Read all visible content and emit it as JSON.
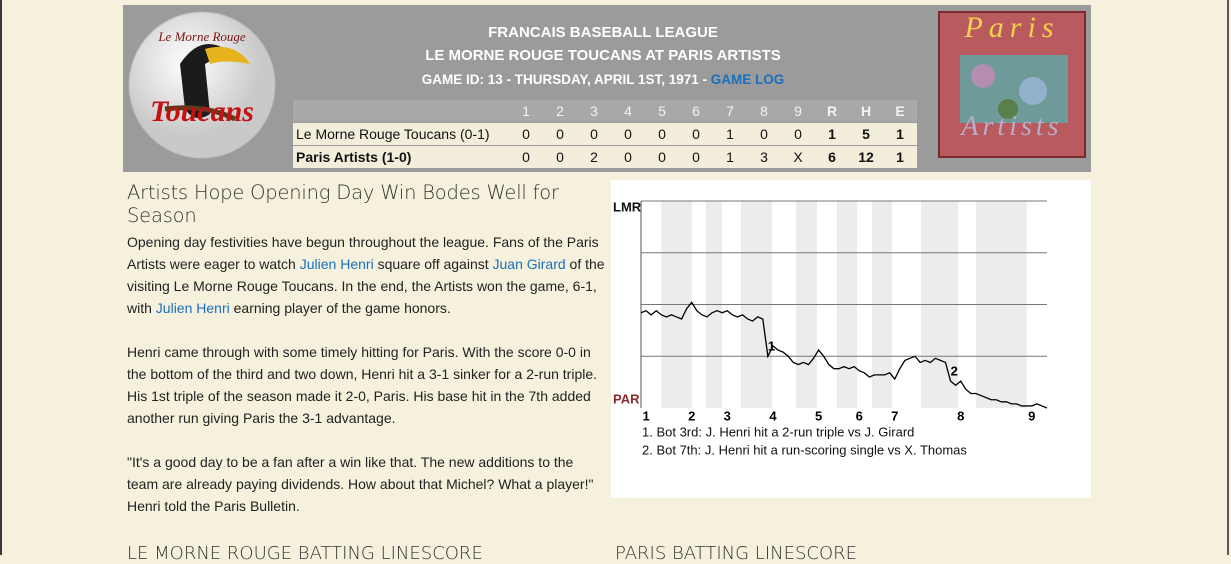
{
  "header": {
    "league": "FRANCAIS BASEBALL LEAGUE",
    "matchup": "LE MORNE ROUGE TOUCANS AT PARIS ARTISTS",
    "game_info": "GAME ID: 13 - THURSDAY, APRIL 1ST, 1971 -",
    "game_log_link": "GAME LOG",
    "away_logo": [
      "Le Morne Rouge",
      "Toucans"
    ],
    "home_logo": [
      "Paris",
      "Artists"
    ]
  },
  "linescore": {
    "columns": [
      "1",
      "2",
      "3",
      "4",
      "5",
      "6",
      "7",
      "8",
      "9",
      "R",
      "H",
      "E"
    ],
    "rows": [
      [
        "Le Morne Rouge Toucans (0-1)",
        0,
        0,
        0,
        0,
        0,
        0,
        1,
        0,
        0,
        1,
        5,
        1
      ],
      [
        "Paris Artists (1-0)",
        0,
        0,
        2,
        0,
        0,
        0,
        1,
        3,
        "X",
        6,
        12,
        1
      ]
    ]
  },
  "article": {
    "headline": "Artists Hope Opening Day Win Bodes Well for Season",
    "paragraphs": [
      [
        "Opening day festivities have begun throughout the league. Fans of the Paris Artists were eager to watch ",
        {
          "link": "Julien Henri"
        },
        " square off against ",
        {
          "link": "Juan Girard"
        },
        " of the visiting Le Morne Rouge Toucans. In the end, the Artists won the game, 6-1, with ",
        {
          "link": "Julien Henri"
        },
        " earning player of the game honors."
      ],
      [
        "Henri came through with some timely hitting for Paris. With the score 0-0 in the bottom of the third and two down, Henri hit a 3-1 sinker for a 2-run triple. His 1st triple of the season made it 2-0, Paris. His base hit in the 7th added another run giving Paris the 3-1 advantage."
      ],
      [
        "\"It's a good day to be a fan after a win like that. The new additions to the team are already paying dividends. How about that Michel? What a player!\" Henri told the Paris Bulletin."
      ]
    ]
  },
  "chart_data": {
    "type": "line",
    "color": "#000000",
    "x": [
      0,
      1,
      2,
      3,
      4,
      5,
      6,
      7,
      8,
      9,
      10,
      11,
      12,
      13,
      14,
      15,
      16,
      17,
      18,
      19,
      20,
      21,
      22,
      23,
      24,
      25,
      26,
      27,
      28,
      29,
      30,
      31,
      32,
      33,
      34,
      35,
      36,
      37,
      38,
      39,
      40,
      41,
      42,
      43,
      44,
      45,
      46,
      47,
      48,
      49,
      50,
      51,
      52,
      53,
      54,
      55,
      56,
      57,
      58,
      59,
      60,
      61,
      62,
      63,
      64,
      65,
      66,
      67,
      68,
      69,
      70,
      71,
      72,
      73,
      74,
      75,
      76,
      77,
      78,
      79,
      80
    ],
    "values": [
      46,
      47,
      45,
      47,
      45,
      44,
      45,
      44,
      43,
      48,
      51,
      47,
      45,
      44,
      46,
      47,
      46,
      47,
      45,
      44,
      45,
      43,
      42,
      44,
      43,
      25,
      30,
      28,
      27,
      25,
      22,
      21,
      22,
      21,
      24,
      28,
      25,
      21,
      19,
      19,
      20,
      19,
      20,
      18,
      17,
      15,
      16,
      16,
      16,
      17,
      14,
      19,
      23,
      24,
      25,
      22,
      23,
      22,
      24,
      23,
      22,
      13,
      11,
      13,
      9,
      7,
      7,
      6,
      5,
      4,
      4,
      3,
      3,
      2,
      2,
      1,
      1,
      1,
      2,
      1,
      0
    ],
    "xlim": [
      0,
      80
    ],
    "ylim": [
      0,
      100
    ],
    "xticks": [
      {
        "value": 1,
        "label": "1"
      },
      {
        "value": 10,
        "label": "2"
      },
      {
        "value": 17,
        "label": "3"
      },
      {
        "value": 26,
        "label": "4"
      },
      {
        "value": 35,
        "label": "5"
      },
      {
        "value": 43,
        "label": "6"
      },
      {
        "value": 50,
        "label": "7"
      },
      {
        "value": 63,
        "label": "8"
      },
      {
        "value": 77,
        "label": "9"
      }
    ],
    "yticks": [
      {
        "value": 100,
        "label": "LMR"
      },
      {
        "value": 0,
        "label": "PAR"
      }
    ],
    "bands": [
      [
        4,
        10
      ],
      [
        12.8,
        16
      ],
      [
        19.7,
        25.8
      ],
      [
        30.5,
        34.7
      ],
      [
        38.6,
        42.6
      ],
      [
        45.5,
        49.5
      ],
      [
        55.2,
        62.5
      ],
      [
        66,
        76
      ]
    ],
    "annotations": [
      {
        "label": "1",
        "x": 25
      },
      {
        "label": "2",
        "x": 61
      }
    ],
    "notes": [
      "1. Bot 3rd: J. Henri hit a 2-run triple vs J. Girard",
      "2. Bot 7th: J. Henri hit a run-scoring single vs X. Thomas"
    ]
  },
  "sections": [
    "LE MORNE ROUGE BATTING LINESCORE",
    "PARIS BATTING LINESCORE"
  ]
}
